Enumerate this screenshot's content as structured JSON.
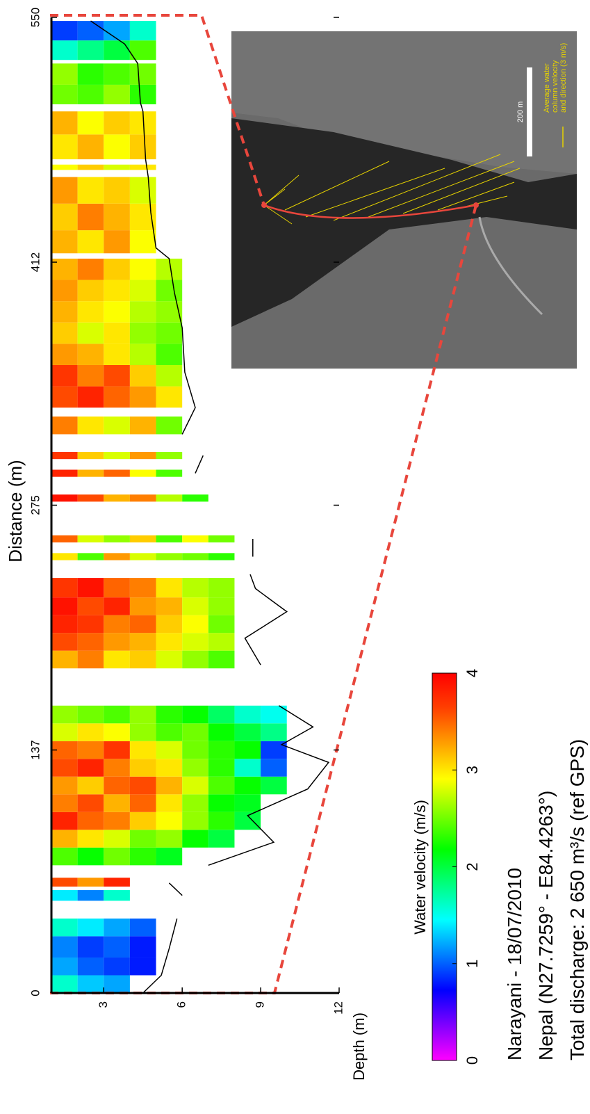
{
  "chart_data": {
    "type": "heatmap",
    "xlabel": "Distance (m)",
    "ylabel": "Depth (m)",
    "xlim": [
      0,
      550
    ],
    "xticks": [
      0,
      137,
      275,
      412,
      550
    ],
    "ylim": [
      1,
      12
    ],
    "yticks": [
      3,
      6,
      9,
      12
    ],
    "bin_start": 1,
    "bin_size": 1,
    "columns": [
      {
        "from": 0,
        "to": 10,
        "values": [
          1.6,
          1.3,
          1.2
        ]
      },
      {
        "from": 10,
        "to": 20,
        "values": [
          1.2,
          1.0,
          0.9,
          0.8
        ]
      },
      {
        "from": 20,
        "to": 32,
        "values": [
          1.1,
          0.9,
          1.0,
          0.8
        ]
      },
      {
        "from": 32,
        "to": 42,
        "values": [
          1.6,
          1.4,
          1.2,
          1.0
        ]
      },
      {
        "from": 52,
        "to": 58,
        "values": [
          1.4,
          1.1,
          1.6
        ]
      },
      {
        "from": 60,
        "to": 65,
        "values": [
          3.6,
          3.3,
          3.8
        ]
      },
      {
        "from": 72,
        "to": 82,
        "values": [
          2.4,
          2.2,
          2.5,
          2.3,
          2.1
        ]
      },
      {
        "from": 82,
        "to": 92,
        "values": [
          3.2,
          3.0,
          2.8,
          2.5,
          2.6,
          2.2,
          2.0
        ]
      },
      {
        "from": 92,
        "to": 102,
        "values": [
          3.8,
          3.5,
          3.4,
          3.1,
          2.9,
          2.6,
          2.3,
          2.0
        ]
      },
      {
        "from": 102,
        "to": 112,
        "values": [
          3.4,
          3.6,
          3.2,
          3.5,
          3.0,
          2.6,
          2.2,
          2.1
        ]
      },
      {
        "from": 112,
        "to": 122,
        "values": [
          3.3,
          3.1,
          3.5,
          3.6,
          3.2,
          2.8,
          2.4,
          2.2,
          2.0
        ]
      },
      {
        "from": 122,
        "to": 132,
        "values": [
          3.6,
          3.8,
          3.4,
          3.1,
          3.0,
          2.6,
          2.3,
          1.6,
          1.0
        ]
      },
      {
        "from": 132,
        "to": 142,
        "values": [
          3.5,
          3.4,
          3.7,
          3.0,
          2.8,
          2.5,
          2.3,
          2.2,
          0.9
        ]
      },
      {
        "from": 142,
        "to": 152,
        "values": [
          2.8,
          3.0,
          2.9,
          2.6,
          2.4,
          2.5,
          2.2,
          2.0,
          1.8
        ]
      },
      {
        "from": 152,
        "to": 162,
        "values": [
          2.6,
          2.5,
          2.4,
          2.6,
          2.3,
          2.2,
          1.9,
          1.6,
          1.5
        ]
      },
      {
        "from": 183,
        "to": 193,
        "values": [
          3.2,
          3.4,
          3.0,
          3.1,
          2.8,
          2.6,
          2.4
        ]
      },
      {
        "from": 193,
        "to": 203,
        "values": [
          3.6,
          3.5,
          3.3,
          3.2,
          3.0,
          2.8,
          2.7
        ]
      },
      {
        "from": 203,
        "to": 213,
        "values": [
          3.8,
          3.7,
          3.4,
          3.5,
          3.1,
          2.9,
          2.5
        ]
      },
      {
        "from": 213,
        "to": 223,
        "values": [
          3.9,
          3.6,
          3.8,
          3.3,
          3.2,
          2.8,
          2.6
        ]
      },
      {
        "from": 223,
        "to": 234,
        "values": [
          3.7,
          3.9,
          3.5,
          3.4,
          3.0,
          2.7,
          2.6
        ]
      },
      {
        "from": 244,
        "to": 248,
        "values": [
          3.0,
          2.4,
          3.3,
          2.8,
          2.6,
          2.5,
          2.3
        ]
      },
      {
        "from": 254,
        "to": 258,
        "values": [
          3.5,
          2.8,
          2.6,
          3.1,
          2.4,
          2.9,
          2.5
        ]
      },
      {
        "from": 277,
        "to": 281,
        "values": [
          3.9,
          3.6,
          3.2,
          3.4,
          2.7,
          2.3
        ]
      },
      {
        "from": 291,
        "to": 295,
        "values": [
          3.8,
          3.2,
          3.5,
          2.9,
          2.4
        ]
      },
      {
        "from": 301,
        "to": 305,
        "values": [
          3.7,
          3.1,
          2.8,
          3.3,
          2.6
        ]
      },
      {
        "from": 315,
        "to": 325,
        "values": [
          3.4,
          3.0,
          2.8,
          3.2,
          2.5
        ]
      },
      {
        "from": 330,
        "to": 342,
        "values": [
          3.6,
          3.8,
          3.5,
          3.3,
          3.0
        ]
      },
      {
        "from": 342,
        "to": 354,
        "values": [
          3.7,
          3.4,
          3.6,
          3.1,
          2.7
        ]
      },
      {
        "from": 354,
        "to": 366,
        "values": [
          3.3,
          3.2,
          3.0,
          2.7,
          2.4
        ]
      },
      {
        "from": 366,
        "to": 378,
        "values": [
          3.1,
          2.8,
          3.0,
          2.6,
          2.5
        ]
      },
      {
        "from": 378,
        "to": 390,
        "values": [
          3.2,
          3.0,
          2.9,
          2.7,
          2.6
        ]
      },
      {
        "from": 390,
        "to": 402,
        "values": [
          3.3,
          3.1,
          3.0,
          2.8,
          2.5
        ]
      },
      {
        "from": 402,
        "to": 414,
        "values": [
          3.2,
          3.4,
          3.1,
          2.9,
          2.7
        ]
      },
      {
        "from": 417,
        "to": 430,
        "values": [
          3.2,
          3.0,
          3.3,
          2.9
        ]
      },
      {
        "from": 430,
        "to": 445,
        "values": [
          3.1,
          3.4,
          3.2,
          3.0
        ]
      },
      {
        "from": 445,
        "to": 460,
        "values": [
          3.3,
          3.0,
          3.1,
          2.8
        ]
      },
      {
        "from": 464,
        "to": 467,
        "values": [
          2.9,
          3.1,
          2.8,
          3.0
        ]
      },
      {
        "from": 470,
        "to": 484,
        "values": [
          3.0,
          3.2,
          2.9,
          3.1
        ]
      },
      {
        "from": 484,
        "to": 497,
        "values": [
          3.2,
          2.9,
          3.1,
          3.0
        ]
      },
      {
        "from": 501,
        "to": 512,
        "values": [
          2.5,
          2.4,
          2.6,
          2.3
        ]
      },
      {
        "from": 512,
        "to": 524,
        "values": [
          2.6,
          2.3,
          2.4,
          2.5
        ]
      },
      {
        "from": 526,
        "to": 537,
        "values": [
          1.6,
          1.8,
          2.0,
          2.4
        ]
      },
      {
        "from": 537,
        "to": 548,
        "values": [
          0.9,
          1.0,
          1.2,
          1.6
        ]
      }
    ],
    "bed": {
      "color": "#000000",
      "distance": [
        0,
        10,
        25,
        42,
        48,
        55,
        62,
        68,
        72,
        85,
        100,
        115,
        130,
        140,
        150,
        162,
        170,
        185,
        200,
        215,
        228,
        236,
        240,
        246,
        256,
        262,
        293,
        303,
        310,
        315,
        330,
        350,
        375,
        395,
        414,
        420,
        440,
        460,
        470,
        497,
        502,
        524,
        535,
        548
      ],
      "depth": [
        4.5,
        5.2,
        5.5,
        5.8,
        null,
        6.0,
        5.5,
        null,
        7.0,
        9.5,
        8.5,
        10.8,
        11.6,
        9.8,
        11.0,
        9.7,
        null,
        9.0,
        8.4,
        10.0,
        8.8,
        8.6,
        null,
        8.7,
        8.7,
        null,
        6.5,
        6.8,
        null,
        6.0,
        6.5,
        6.1,
        6.0,
        5.7,
        5.5,
        5.0,
        4.8,
        4.7,
        4.6,
        4.5,
        4.4,
        4.3,
        3.8,
        2.5
      ]
    },
    "colorbar": {
      "label": "Water velocity (m/s)",
      "clim": [
        0,
        4
      ],
      "ticks": [
        0,
        1,
        2,
        3,
        4
      ],
      "colors": [
        "#ff00ff",
        "#8000ff",
        "#0000ff",
        "#0080ff",
        "#00ffff",
        "#00ff80",
        "#00ff00",
        "#80ff00",
        "#ffff00",
        "#ffa000",
        "#ff4000",
        "#ff0000"
      ]
    }
  },
  "inset": {
    "scale_label": "200 m",
    "legend": [
      "Average water",
      "column velocity",
      "and direction (3 m/s)"
    ]
  },
  "caption": [
    "Narayani - 18/07/2010",
    "Nepal (N27.7259° - E84.4263°)",
    "Total discharge: 2 650 m³/s (ref GPS)"
  ]
}
